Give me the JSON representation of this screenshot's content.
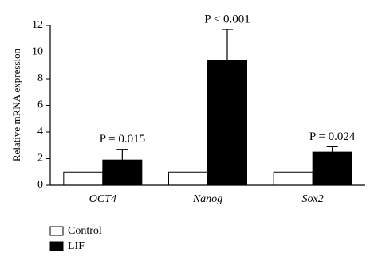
{
  "chart_data": {
    "type": "bar",
    "y_label": "Relative mRNA expression",
    "categories": [
      "OCT4",
      "Nanog",
      "Sox2"
    ],
    "series": [
      {
        "name": "Control",
        "color": "#ffffff",
        "values": [
          1,
          1,
          1
        ]
      },
      {
        "name": "LIF",
        "color": "#000000",
        "values": [
          1.9,
          9.4,
          2.5
        ],
        "errors": [
          0.8,
          2.3,
          0.4
        ]
      }
    ],
    "annotations": [
      "P = 0.015",
      "P < 0.001",
      "P = 0.024"
    ],
    "ylim": [
      0,
      12
    ],
    "yticks": [
      0,
      2,
      4,
      6,
      8,
      10,
      12
    ],
    "legend": "bottom-left"
  }
}
